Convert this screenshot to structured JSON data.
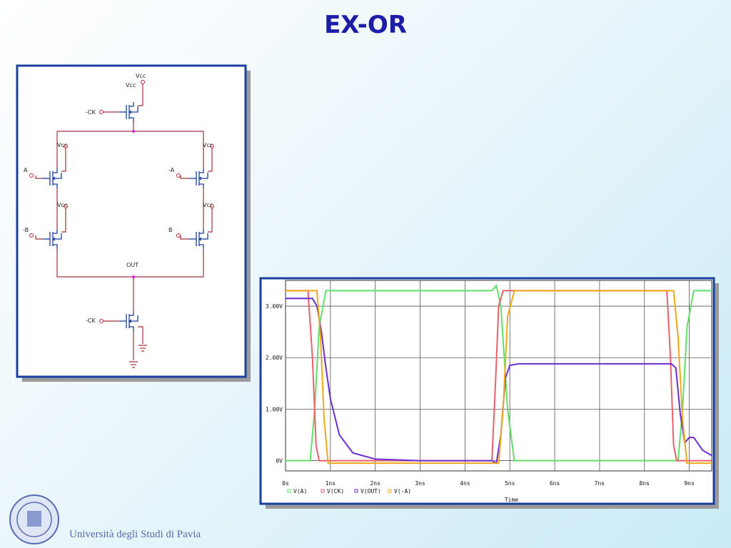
{
  "title": "EX-OR",
  "schematic": {
    "labels": [
      "Vcc",
      "Vcc",
      "-CK",
      "Vcc",
      "Vcc",
      "A",
      "-A",
      "Vcc",
      "Vcc",
      "-B",
      "B",
      "OUT",
      "-CK"
    ]
  },
  "chart_data": {
    "type": "line",
    "xlabel": "Time",
    "xlim": [
      0,
      9.5
    ],
    "ylim": [
      -0.2,
      3.5
    ],
    "xticks": [
      {
        "value": 0,
        "label": "0s"
      },
      {
        "value": 1,
        "label": "1ns"
      },
      {
        "value": 2,
        "label": "2ns"
      },
      {
        "value": 3,
        "label": "3ns"
      },
      {
        "value": 4,
        "label": "4ns"
      },
      {
        "value": 5,
        "label": "5ns"
      },
      {
        "value": 6,
        "label": "6ns"
      },
      {
        "value": 7,
        "label": "7ns"
      },
      {
        "value": 8,
        "label": "8ns"
      },
      {
        "value": 9,
        "label": "9ns"
      }
    ],
    "yticks": [
      {
        "value": 0,
        "label": "0V"
      },
      {
        "value": 1,
        "label": "1.00V"
      },
      {
        "value": 2,
        "label": "2.00V"
      },
      {
        "value": 3,
        "label": "3.00V"
      }
    ],
    "grid": true,
    "series": [
      {
        "name": "V(A)",
        "color": "#5ee06a",
        "x": [
          0,
          0.55,
          0.65,
          0.75,
          0.9,
          4.6,
          4.7,
          4.8,
          4.95,
          5.1,
          8.75,
          8.85,
          8.95,
          9.1,
          9.5
        ],
        "values": [
          0,
          0,
          1.0,
          2.6,
          3.3,
          3.3,
          3.4,
          3.0,
          1.0,
          0,
          0,
          1.0,
          2.6,
          3.3,
          3.3
        ]
      },
      {
        "name": "V(CK)",
        "color": "#e8606a",
        "x": [
          0,
          0.5,
          0.6,
          0.68,
          0.75,
          4.6,
          4.68,
          4.75,
          4.85,
          8.5,
          8.58,
          8.65,
          8.72,
          9.5
        ],
        "values": [
          3.3,
          3.3,
          2.0,
          0.3,
          0,
          0,
          1.5,
          3.0,
          3.3,
          3.3,
          2.0,
          0.3,
          0,
          0
        ]
      },
      {
        "name": "V(OUT)",
        "color": "#6a2fd0",
        "x": [
          0,
          0.6,
          0.7,
          0.8,
          0.9,
          1.0,
          1.2,
          1.5,
          2.0,
          3.0,
          4.6,
          4.7,
          4.8,
          4.9,
          5.0,
          5.2,
          8.6,
          8.7,
          8.8,
          8.9,
          9.0,
          9.1,
          9.3,
          9.5
        ],
        "values": [
          3.15,
          3.15,
          3.0,
          2.5,
          1.8,
          1.2,
          0.5,
          0.15,
          0.03,
          0,
          0,
          -0.05,
          0.5,
          1.6,
          1.85,
          1.88,
          1.88,
          1.8,
          0.9,
          0.35,
          0.45,
          0.45,
          0.2,
          0.1
        ]
      },
      {
        "name": "V(-A)",
        "color": "#f0a818",
        "x": [
          0,
          0.7,
          0.78,
          0.86,
          0.95,
          4.75,
          4.85,
          4.95,
          5.1,
          8.65,
          8.75,
          8.85,
          8.95,
          9.5
        ],
        "values": [
          3.3,
          3.3,
          2.4,
          0.8,
          -0.05,
          -0.05,
          1.0,
          2.8,
          3.3,
          3.3,
          2.4,
          0.8,
          -0.05,
          -0.05
        ]
      }
    ]
  },
  "footer": "Università degli Studi di Pavia"
}
